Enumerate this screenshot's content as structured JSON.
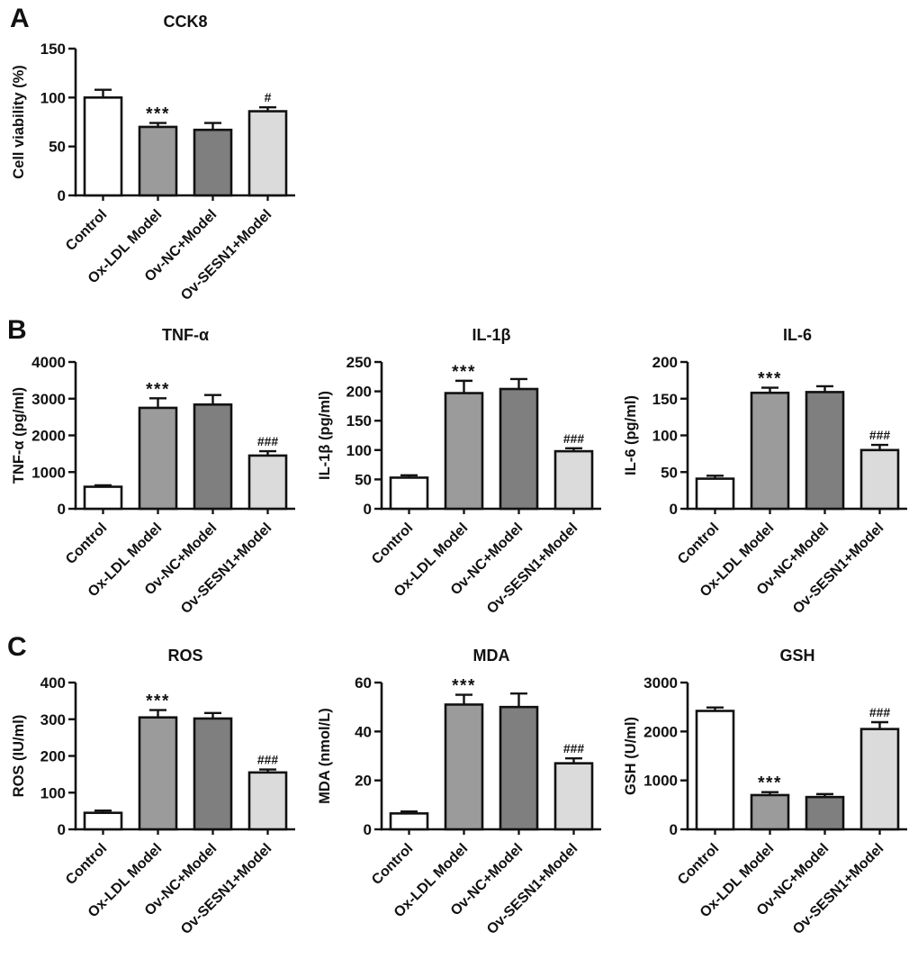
{
  "figure": {
    "background": "#ffffff",
    "panels": [
      {
        "label": "A"
      },
      {
        "label": "B"
      },
      {
        "label": "C"
      }
    ]
  },
  "styles": {
    "axis_color": "#111111",
    "bar_colors": [
      "#ffffff",
      "#9b9b9b",
      "#7f7f7f",
      "#dbdbdb"
    ]
  },
  "chart_data": [
    {
      "type": "bar",
      "panel": "A",
      "title": "CCK8",
      "ylabel": "Cell viability (%)",
      "xlabel": "",
      "ylim": [
        0,
        150
      ],
      "yticks": [
        0,
        50,
        100,
        150
      ],
      "grid": false,
      "legend": "none",
      "categories": [
        "Control",
        "Ox-LDL Model",
        "Ov-NC+Model",
        "Ov-SESN1+Model"
      ],
      "values": [
        100,
        70,
        67,
        86
      ],
      "errors": [
        8,
        4,
        7,
        4
      ],
      "annotations": [
        "",
        "***",
        "",
        "#"
      ]
    },
    {
      "type": "bar",
      "panel": "B",
      "title": "TNF-α",
      "ylabel": "TNF-α (pg/ml)",
      "xlabel": "",
      "ylim": [
        0,
        4000
      ],
      "yticks": [
        0,
        1000,
        2000,
        3000,
        4000
      ],
      "grid": false,
      "legend": "none",
      "categories": [
        "Control",
        "Ox-LDL Model",
        "Ov-NC+Model",
        "Ov-SESN1+Model"
      ],
      "values": [
        600,
        2750,
        2840,
        1450
      ],
      "errors": [
        40,
        260,
        260,
        120
      ],
      "annotations": [
        "",
        "***",
        "",
        "###"
      ]
    },
    {
      "type": "bar",
      "panel": "B",
      "title": "IL-1β",
      "ylabel": "IL-1β (pg/ml)",
      "xlabel": "",
      "ylim": [
        0,
        250
      ],
      "yticks": [
        0,
        50,
        100,
        150,
        200,
        250
      ],
      "grid": false,
      "legend": "none",
      "categories": [
        "Control",
        "Ox-LDL Model",
        "Ov-NC+Model",
        "Ov-SESN1+Model"
      ],
      "values": [
        53,
        197,
        204,
        98
      ],
      "errors": [
        4,
        21,
        17,
        5
      ],
      "annotations": [
        "",
        "***",
        "",
        "###"
      ]
    },
    {
      "type": "bar",
      "panel": "B",
      "title": "IL-6",
      "ylabel": "IL-6 (pg/ml)",
      "xlabel": "",
      "ylim": [
        0,
        200
      ],
      "yticks": [
        0,
        50,
        100,
        150,
        200
      ],
      "grid": false,
      "legend": "none",
      "categories": [
        "Control",
        "Ox-LDL Model",
        "Ov-NC+Model",
        "Ov-SESN1+Model"
      ],
      "values": [
        41,
        158,
        159,
        80
      ],
      "errors": [
        4,
        7,
        8,
        7
      ],
      "annotations": [
        "",
        "***",
        "",
        "###"
      ]
    },
    {
      "type": "bar",
      "panel": "C",
      "title": "ROS",
      "ylabel": "ROS (IU/ml)",
      "xlabel": "",
      "ylim": [
        0,
        400
      ],
      "yticks": [
        0,
        100,
        200,
        300,
        400
      ],
      "grid": false,
      "legend": "none",
      "categories": [
        "Control",
        "Ox-LDL Model",
        "Ov-NC+Model",
        "Ov-SESN1+Model"
      ],
      "values": [
        45,
        305,
        302,
        155
      ],
      "errors": [
        6,
        20,
        15,
        8
      ],
      "annotations": [
        "",
        "***",
        "",
        "###"
      ]
    },
    {
      "type": "bar",
      "panel": "C",
      "title": "MDA",
      "ylabel": "MDA (nmol/L)",
      "xlabel": "",
      "ylim": [
        0,
        60
      ],
      "yticks": [
        0,
        20,
        40,
        60
      ],
      "grid": false,
      "legend": "none",
      "categories": [
        "Control",
        "Ox-LDL Model",
        "Ov-NC+Model",
        "Ov-SESN1+Model"
      ],
      "values": [
        6.5,
        51,
        50,
        27
      ],
      "errors": [
        0.8,
        4,
        5.5,
        2
      ],
      "annotations": [
        "",
        "***",
        "",
        "###"
      ]
    },
    {
      "type": "bar",
      "panel": "C",
      "title": "GSH",
      "ylabel": "GSH (U/ml)",
      "xlabel": "",
      "ylim": [
        0,
        3000
      ],
      "yticks": [
        0,
        1000,
        2000,
        3000
      ],
      "grid": false,
      "legend": "none",
      "categories": [
        "Control",
        "Ox-LDL Model",
        "Ov-NC+Model",
        "Ov-SESN1+Model"
      ],
      "values": [
        2420,
        700,
        660,
        2050
      ],
      "errors": [
        70,
        60,
        60,
        140
      ],
      "annotations": [
        "",
        "***",
        "",
        "###"
      ]
    }
  ]
}
